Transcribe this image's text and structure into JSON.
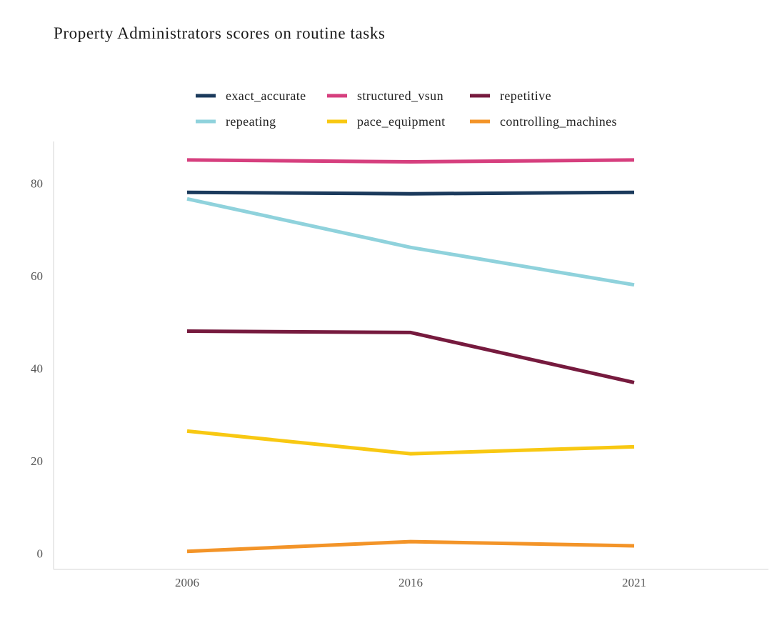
{
  "chart_data": {
    "type": "line",
    "title": "Property Administrators scores on routine tasks",
    "xlabel": "",
    "ylabel": "",
    "x": [
      "2006",
      "2016",
      "2021"
    ],
    "yticks": [
      0,
      20,
      40,
      60,
      80
    ],
    "ylim": [
      -3.5,
      89
    ],
    "grid": false,
    "legend_position": "top",
    "series": [
      {
        "name": "exact_accurate",
        "color": "#1b3a5c",
        "values": [
          78,
          77.7,
          78
        ]
      },
      {
        "name": "structured_vsun",
        "color": "#d63f7e",
        "values": [
          85,
          84.6,
          85
        ]
      },
      {
        "name": "repetitive",
        "color": "#761a3e",
        "values": [
          48,
          47.7,
          36.9
        ]
      },
      {
        "name": "repeating",
        "color": "#8fd2dc",
        "values": [
          76.6,
          66.1,
          58
        ]
      },
      {
        "name": "pace_equipment",
        "color": "#f8c812",
        "values": [
          26.4,
          21.5,
          23
        ]
      },
      {
        "name": "controlling_machines",
        "color": "#f39428",
        "values": [
          0.4,
          2.5,
          1.6
        ]
      }
    ]
  }
}
